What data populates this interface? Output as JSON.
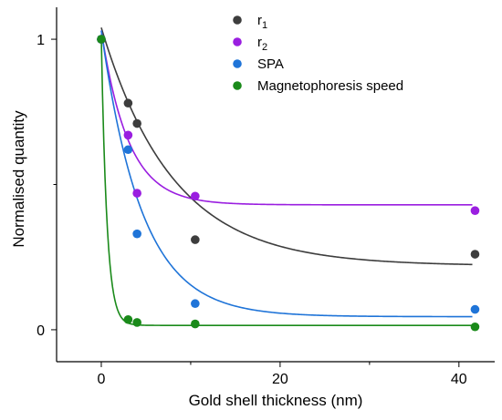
{
  "chart_data": {
    "type": "scatter",
    "title": "",
    "xlabel": "Gold shell thickness (nm)",
    "ylabel": "Normalised quantity",
    "xlim": [
      -5,
      44
    ],
    "ylim": [
      -0.11,
      1.11
    ],
    "x_ticks": [
      0,
      20,
      40
    ],
    "x_tick_labels": [
      "0",
      "20",
      "40"
    ],
    "y_ticks": [
      0,
      1
    ],
    "y_tick_labels": [
      "0",
      "1"
    ],
    "grid": false,
    "legend_position": "top-center",
    "series": [
      {
        "name": "r",
        "subscript": "1",
        "color": "#3d3d3d",
        "points": [
          [
            0,
            1.0
          ],
          [
            3,
            0.78
          ],
          [
            4,
            0.71
          ],
          [
            10.5,
            0.31
          ],
          [
            41.8,
            0.26
          ]
        ],
        "fit": {
          "form": "exp_decay",
          "a": 0.22,
          "b": 0.82,
          "k": 0.125
        }
      },
      {
        "name": "r",
        "subscript": "2",
        "color": "#9a1ee0",
        "points": [
          [
            0,
            1.0
          ],
          [
            3,
            0.67
          ],
          [
            4,
            0.47
          ],
          [
            10.5,
            0.46
          ],
          [
            41.8,
            0.41
          ]
        ],
        "fit": {
          "form": "exp_decay",
          "a": 0.43,
          "b": 0.6,
          "k": 0.33
        }
      },
      {
        "name": "SPA",
        "subscript": "",
        "color": "#1f74d8",
        "points": [
          [
            0,
            1.0
          ],
          [
            3,
            0.62
          ],
          [
            4,
            0.33
          ],
          [
            10.5,
            0.09
          ],
          [
            41.8,
            0.07
          ]
        ],
        "fit": {
          "form": "exp_decay",
          "a": 0.045,
          "b": 0.985,
          "k": 0.22
        }
      },
      {
        "name": "Magnetophoresis speed",
        "subscript": "",
        "color": "#1a8a1a",
        "points": [
          [
            0,
            1.0
          ],
          [
            3,
            0.035
          ],
          [
            4,
            0.025
          ],
          [
            10.5,
            0.02
          ],
          [
            41.8,
            0.01
          ]
        ],
        "fit": {
          "form": "exp_decay",
          "a": 0.015,
          "b": 0.99,
          "k": 1.6
        }
      }
    ]
  }
}
